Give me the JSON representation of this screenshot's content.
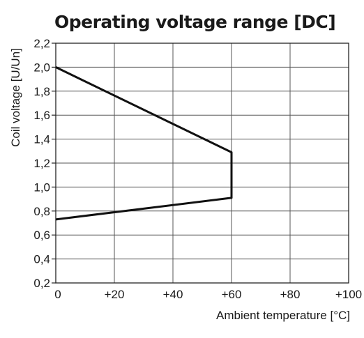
{
  "chart_data": {
    "type": "line",
    "title": "Operating voltage range [DC]",
    "xlabel": "Ambient temperature [°C]",
    "ylabel": "Coil voltage [U/Un]",
    "xlim": [
      0,
      100
    ],
    "ylim": [
      0.2,
      2.2
    ],
    "x_ticks": [
      0,
      20,
      40,
      60,
      80,
      100
    ],
    "x_tick_labels": [
      "0",
      "+20",
      "+40",
      "+60",
      "+80",
      "+100"
    ],
    "y_ticks": [
      0.2,
      0.4,
      0.6,
      0.8,
      1.0,
      1.2,
      1.4,
      1.6,
      1.8,
      2.0,
      2.2
    ],
    "y_tick_labels": [
      "0,2",
      "0,4",
      "0,6",
      "0,8",
      "1,0",
      "1,2",
      "1,4",
      "1,6",
      "1,8",
      "2,0",
      "2,2"
    ],
    "grid": true,
    "series": [
      {
        "x": [
          0,
          60,
          60,
          0
        ],
        "y": [
          2.0,
          1.29,
          0.91,
          0.73
        ]
      }
    ]
  },
  "colors": {
    "line": "#111111",
    "grid": "#555555",
    "axis": "#222222"
  }
}
